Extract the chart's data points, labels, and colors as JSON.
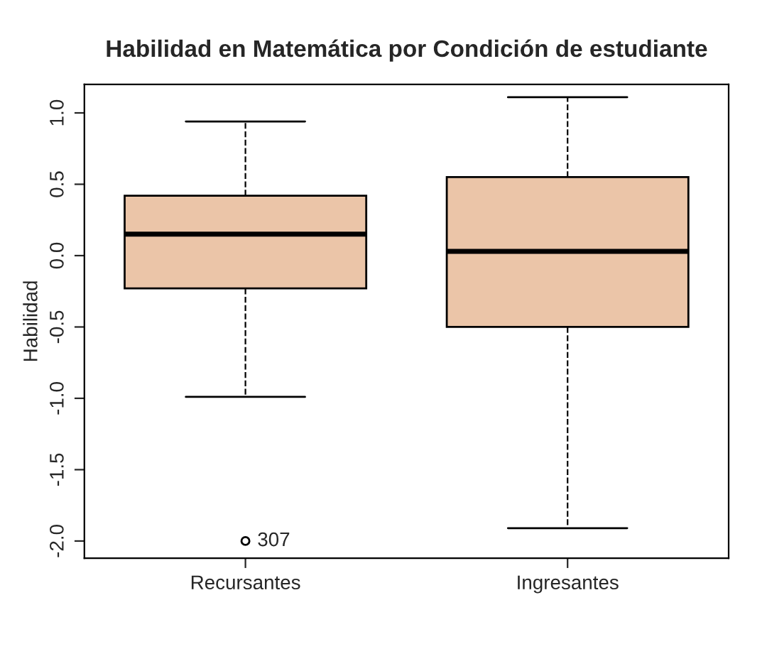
{
  "chart_data": {
    "type": "box",
    "title": "Habilidad en Matemática por Condición de estudiante",
    "ylabel": "Habilidad",
    "categories": [
      "Recursantes",
      "Ingresantes"
    ],
    "boxes": [
      {
        "low": -0.99,
        "q1": -0.23,
        "median": 0.15,
        "q3": 0.42,
        "high": 0.94,
        "outliers": [
          -2.0
        ]
      },
      {
        "low": -1.91,
        "q1": -0.5,
        "median": 0.03,
        "q3": 0.55,
        "high": 1.11
      }
    ],
    "color": "#ebc5a8",
    "ylim": [
      -2.12,
      1.2
    ],
    "yticks": [
      {
        "value": -2.0,
        "label": "-2.0"
      },
      {
        "value": -1.5,
        "label": "-1.5"
      },
      {
        "value": -1.0,
        "label": "-1.0"
      },
      {
        "value": -0.5,
        "label": "-0.5"
      },
      {
        "value": 0.0,
        "label": "0.0"
      },
      {
        "value": 0.5,
        "label": "0.5"
      },
      {
        "value": 1.0,
        "label": "1.0"
      }
    ],
    "annotations": [
      "307"
    ],
    "grid": false,
    "legend": false
  }
}
